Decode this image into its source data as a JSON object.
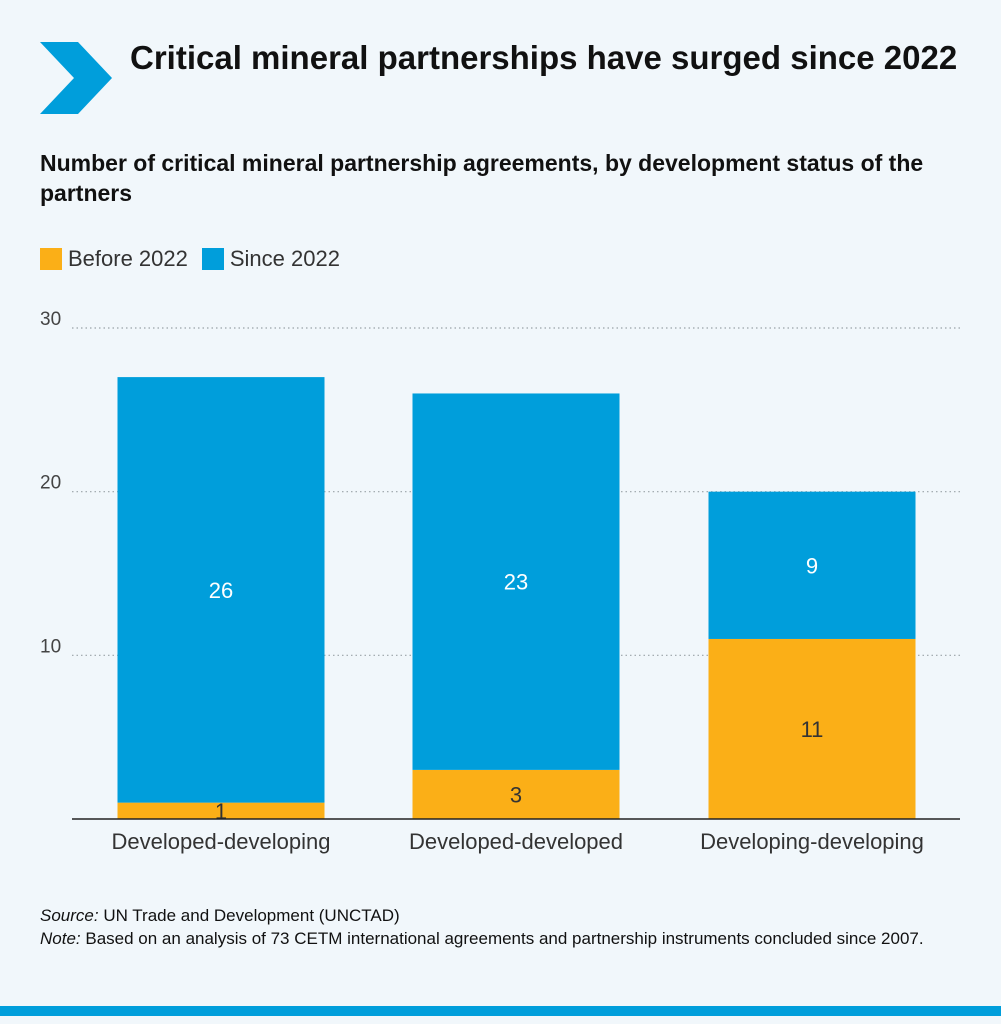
{
  "header": {
    "title": "Critical mineral partnerships have surged since 2022",
    "subtitle": "Number of critical mineral partnership agreements, by development status of the partners"
  },
  "legend": {
    "items": [
      {
        "label": "Before 2022",
        "color": "#fbaf17"
      },
      {
        "label": "Since 2022",
        "color": "#009edb"
      }
    ]
  },
  "chart_data": {
    "type": "bar",
    "stacked": true,
    "categories": [
      "Developed-developing",
      "Developed-developed",
      "Developing-developing"
    ],
    "series": [
      {
        "name": "Before 2022",
        "values": [
          1,
          3,
          11
        ],
        "color": "#fbaf17"
      },
      {
        "name": "Since 2022",
        "values": [
          26,
          23,
          9
        ],
        "color": "#009edb"
      }
    ],
    "ylim": [
      0,
      30
    ],
    "yticks": [
      10,
      20,
      30
    ],
    "grid": true,
    "legend_position": "top-left"
  },
  "footer": {
    "source_label": "Source:",
    "source_text": "UN Trade and Development (UNCTAD)",
    "note_label": "Note:",
    "note_text": "Based on an analysis of 73 CETM international agreements and partnership instruments concluded since 2007."
  },
  "colors": {
    "accent": "#009edb",
    "before": "#fbaf17",
    "since": "#009edb",
    "background": "#f1f7fb"
  }
}
